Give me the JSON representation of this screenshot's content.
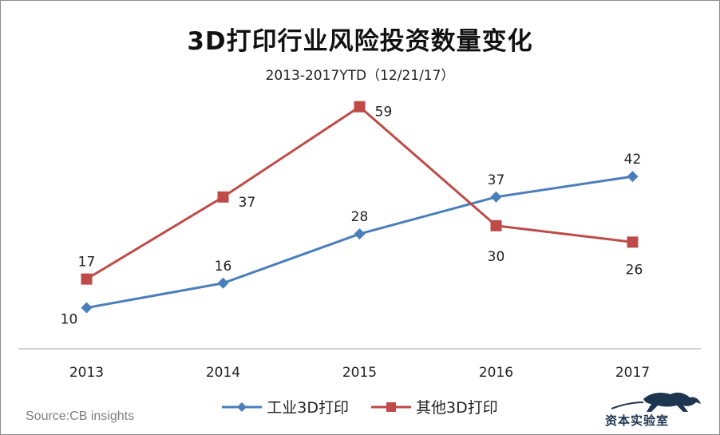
{
  "chart_data": {
    "type": "line",
    "title": "3D打印行业风险投资数量变化",
    "subtitle": "2013-2017YTD（12/21/17）",
    "categories": [
      "2013",
      "2014",
      "2015",
      "2016",
      "2017"
    ],
    "series": [
      {
        "name": "工业3D打印",
        "values": [
          10,
          16,
          28,
          37,
          42
        ],
        "color": "#4a7ebb",
        "marker": "diamond"
      },
      {
        "name": "其他3D打印",
        "values": [
          17,
          37,
          59,
          30,
          26
        ],
        "color": "#be4b48",
        "marker": "square"
      }
    ],
    "ylim": [
      0,
      64
    ],
    "grid": false,
    "legend_position": "bottom",
    "source": "Source:CB insights"
  },
  "brand": {
    "name": "资本实验室",
    "icon": "leopard-logo-icon"
  }
}
